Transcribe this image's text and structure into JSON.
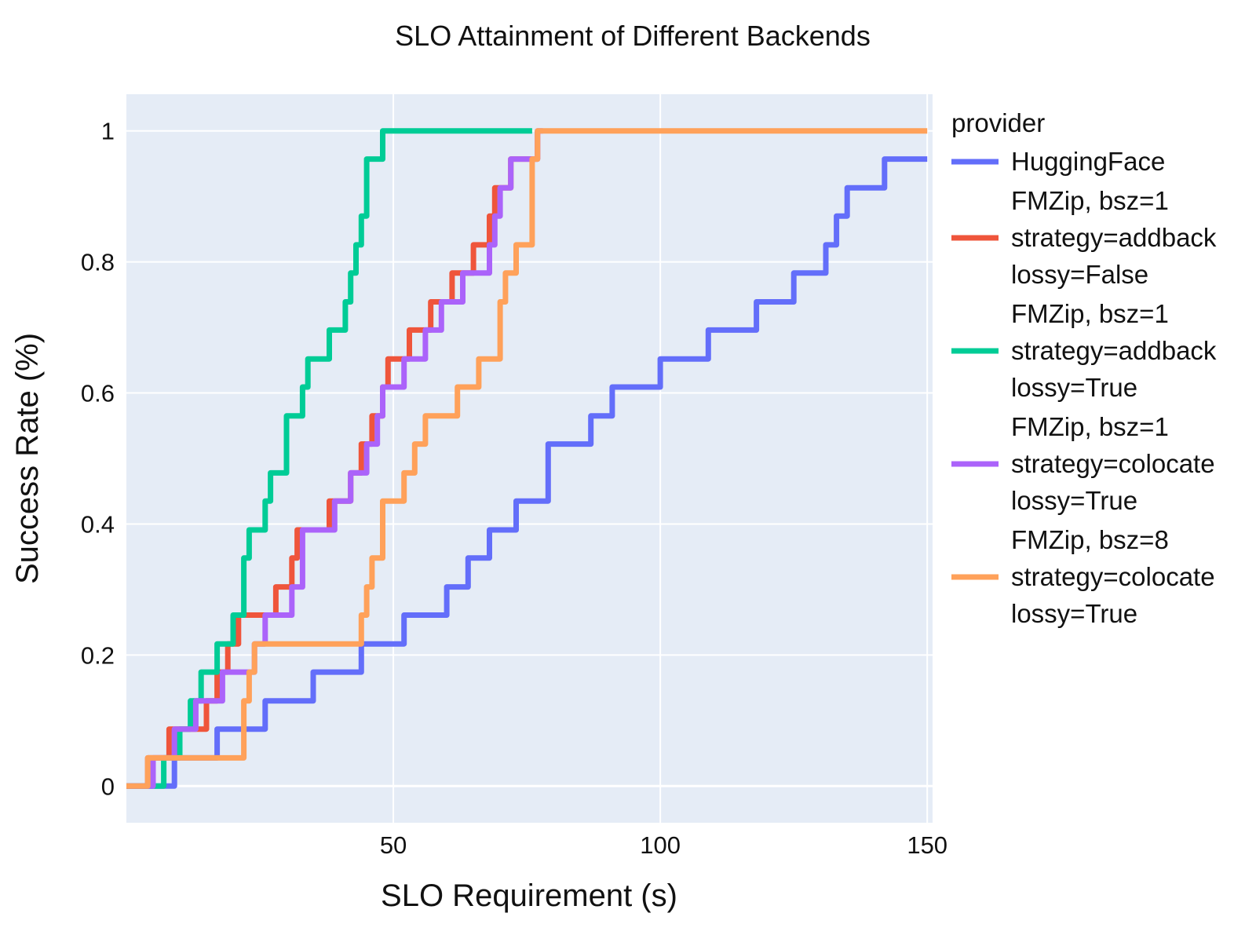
{
  "chart_data": {
    "type": "line",
    "line_shape": "step",
    "title": "SLO Attainment of Different Backends",
    "xlabel": "SLO Requirement (s)",
    "ylabel": "Success Rate (%)",
    "xlim": [
      0,
      151
    ],
    "ylim": [
      -0.056,
      1.056
    ],
    "x_ticks": [
      50,
      100,
      150
    ],
    "y_ticks": [
      0,
      0.2,
      0.4,
      0.6,
      0.8,
      1
    ],
    "y_tick_labels": [
      "0",
      "0.2",
      "0.4",
      "0.6",
      "0.8",
      "1"
    ],
    "grid": true,
    "plot_background": "#e5ecf6",
    "legend_title": "provider",
    "legend_position": "right",
    "series": [
      {
        "name": "HuggingFace",
        "legend_lines": [
          "HuggingFace"
        ],
        "color": "#636efa",
        "x": [
          0,
          9,
          17,
          26,
          35,
          44,
          52,
          60,
          64,
          68,
          73,
          79,
          87,
          91,
          100,
          109,
          118,
          125,
          131,
          133,
          135,
          142,
          150
        ],
        "y": [
          0,
          0.043,
          0.087,
          0.13,
          0.174,
          0.217,
          0.261,
          0.304,
          0.348,
          0.391,
          0.435,
          0.522,
          0.565,
          0.609,
          0.652,
          0.696,
          0.739,
          0.783,
          0.826,
          0.87,
          0.913,
          0.957,
          0.957
        ]
      },
      {
        "name": "FMZip, bsz=1 strategy=addback lossy=False",
        "legend_lines": [
          "FMZip, bsz=1",
          "strategy=addback",
          "lossy=False"
        ],
        "color": "#ef553b",
        "x": [
          0,
          4,
          8,
          15,
          17,
          19,
          21,
          24,
          28,
          31,
          32,
          38,
          42,
          44,
          46,
          48,
          49,
          53,
          57,
          61,
          65,
          67,
          68,
          69,
          71,
          72,
          74,
          77
        ],
        "y": [
          0,
          0.043,
          0.087,
          0.13,
          0.174,
          0.217,
          0.261,
          0.261,
          0.304,
          0.348,
          0.391,
          0.435,
          0.478,
          0.522,
          0.565,
          0.609,
          0.652,
          0.696,
          0.739,
          0.783,
          0.826,
          0.826,
          0.87,
          0.913,
          0.913,
          0.957,
          0.957,
          1
        ]
      },
      {
        "name": "FMZip, bsz=1 strategy=addback lossy=True",
        "legend_lines": [
          "FMZip, bsz=1",
          "strategy=addback",
          "lossy=True"
        ],
        "color": "#00cc96",
        "x": [
          0,
          7,
          10,
          12,
          14,
          17,
          20,
          22,
          23,
          26,
          27,
          30,
          33,
          34,
          36,
          38,
          41,
          42,
          43,
          44,
          45,
          46,
          48,
          49,
          60,
          76
        ],
        "y": [
          0,
          0.043,
          0.087,
          0.13,
          0.174,
          0.217,
          0.261,
          0.348,
          0.391,
          0.435,
          0.478,
          0.565,
          0.609,
          0.652,
          0.652,
          0.696,
          0.739,
          0.783,
          0.826,
          0.87,
          0.957,
          0.957,
          1,
          1,
          1,
          1
        ]
      },
      {
        "name": "FMZip, bsz=1 strategy=colocate lossy=True",
        "legend_lines": [
          "FMZip, bsz=1",
          "strategy=colocate",
          "lossy=True"
        ],
        "color": "#ab63fa",
        "x": [
          0,
          5,
          9,
          13,
          18,
          24,
          26,
          31,
          33,
          36,
          39,
          42,
          45,
          47,
          48,
          52,
          56,
          59,
          63,
          64,
          68,
          69,
          70,
          71,
          72,
          77,
          78
        ],
        "y": [
          0,
          0.043,
          0.087,
          0.13,
          0.174,
          0.217,
          0.261,
          0.304,
          0.391,
          0.391,
          0.435,
          0.478,
          0.522,
          0.565,
          0.609,
          0.652,
          0.696,
          0.739,
          0.783,
          0.783,
          0.826,
          0.87,
          0.913,
          0.913,
          0.957,
          1,
          1
        ]
      },
      {
        "name": "FMZip, bsz=8 strategy=colocate lossy=True",
        "legend_lines": [
          "FMZip, bsz=8",
          "strategy=colocate",
          "lossy=True"
        ],
        "color": "#ffa15a",
        "x": [
          0,
          4,
          21,
          22,
          23,
          24,
          43,
          44,
          45,
          46,
          48,
          52,
          54,
          56,
          62,
          66,
          68,
          70,
          71,
          73,
          75,
          76,
          77,
          150
        ],
        "y": [
          0,
          0.043,
          0.043,
          0.13,
          0.174,
          0.217,
          0.217,
          0.261,
          0.304,
          0.348,
          0.435,
          0.478,
          0.522,
          0.565,
          0.609,
          0.652,
          0.652,
          0.739,
          0.783,
          0.826,
          0.826,
          0.957,
          1,
          1
        ]
      }
    ]
  }
}
